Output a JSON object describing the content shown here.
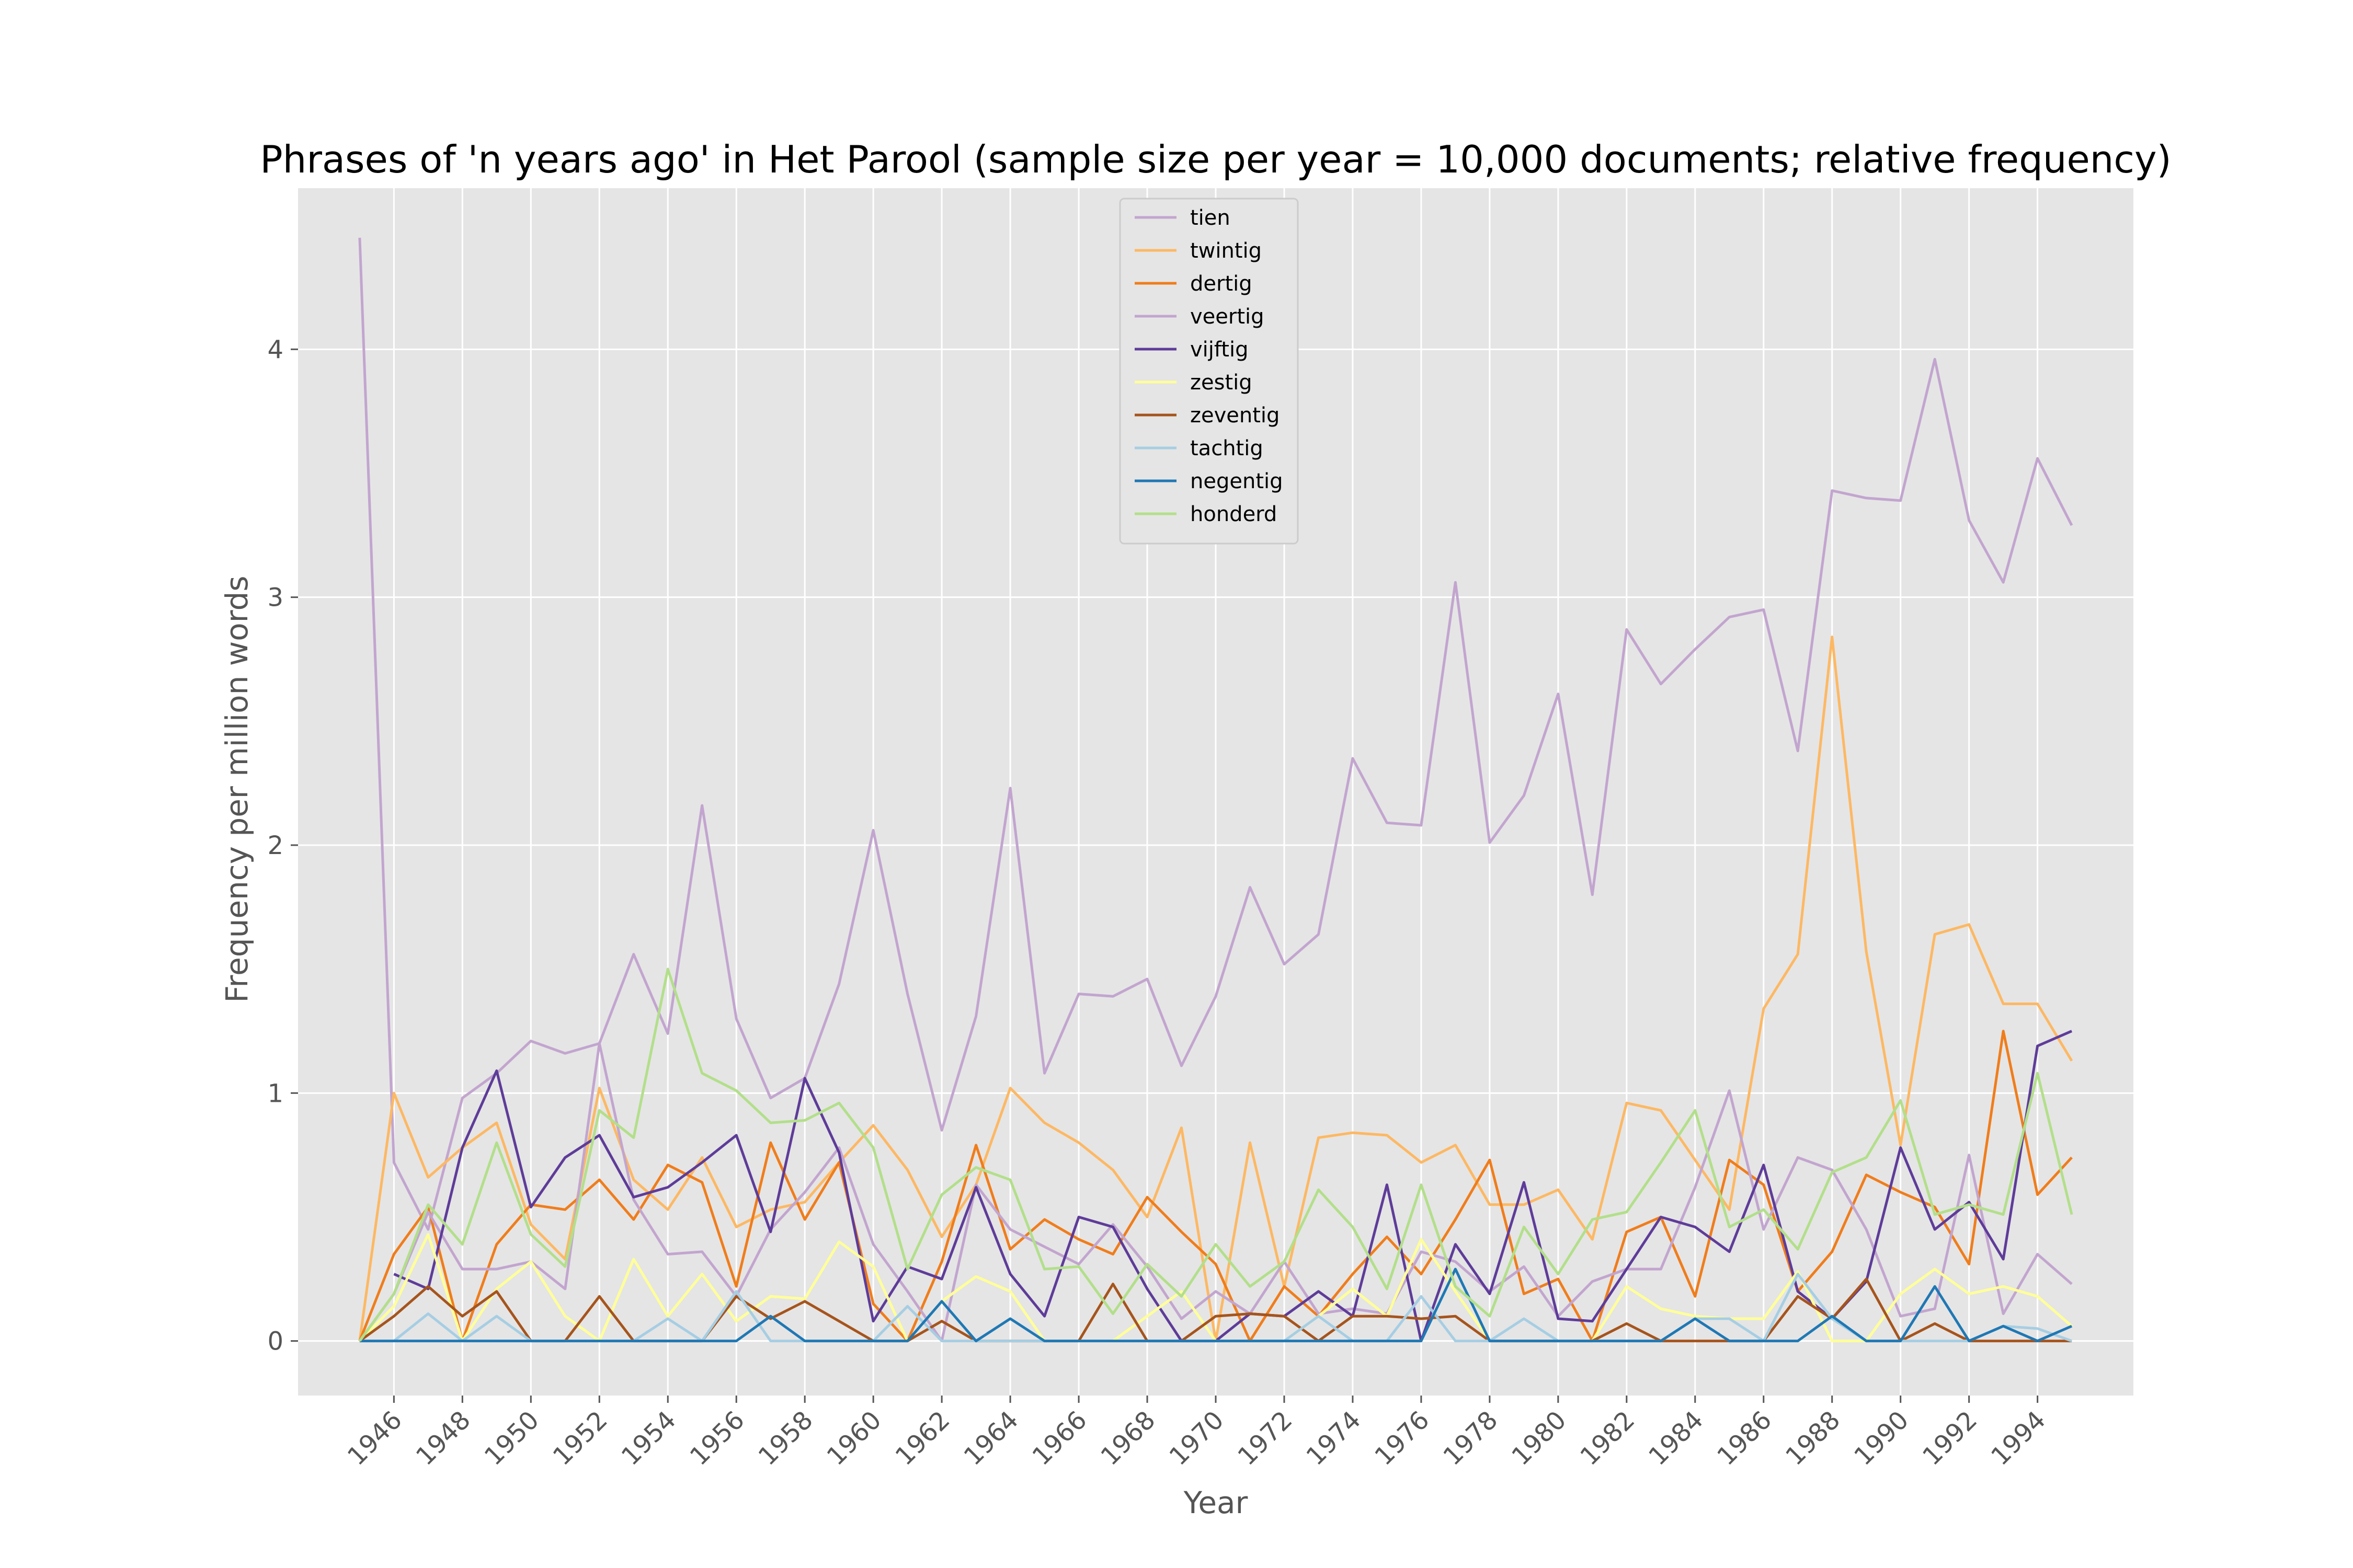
{
  "chart_data": {
    "type": "line",
    "title": "Phrases of 'n years ago' in Het Parool (sample size per year = 10,000 documents; relative frequency)",
    "xlabel": "Year",
    "ylabel": "Frequency per million words",
    "xlim": [
      1943.2,
      1996.8
    ],
    "ylim": [
      -0.22,
      4.65
    ],
    "xticks": [
      1946,
      1948,
      1950,
      1952,
      1954,
      1956,
      1958,
      1960,
      1962,
      1964,
      1966,
      1968,
      1970,
      1972,
      1974,
      1976,
      1978,
      1980,
      1982,
      1984,
      1986,
      1988,
      1990,
      1992,
      1994
    ],
    "yticks": [
      0,
      1,
      2,
      3,
      4
    ],
    "grid": true,
    "legend_position": "top-center",
    "x": [
      1945,
      1946,
      1947,
      1948,
      1949,
      1950,
      1951,
      1952,
      1953,
      1954,
      1955,
      1956,
      1957,
      1958,
      1959,
      1960,
      1961,
      1962,
      1963,
      1964,
      1965,
      1966,
      1967,
      1968,
      1969,
      1970,
      1971,
      1972,
      1973,
      1974,
      1975,
      1976,
      1977,
      1978,
      1979,
      1980,
      1981,
      1982,
      1983,
      1984,
      1985,
      1986,
      1987,
      1988,
      1989,
      1990,
      1991,
      1992,
      1993,
      1994,
      1995
    ],
    "series": [
      {
        "name": "tien",
        "color": "#c2a5cf",
        "values": [
          4.45,
          0.72,
          0.45,
          0.98,
          1.08,
          1.21,
          1.16,
          1.2,
          1.56,
          1.24,
          2.16,
          1.3,
          0.98,
          1.06,
          1.44,
          2.06,
          1.4,
          0.85,
          1.31,
          2.23,
          1.08,
          1.4,
          1.39,
          1.46,
          1.11,
          1.39,
          1.83,
          1.52,
          1.64,
          2.35,
          2.09,
          2.08,
          3.06,
          2.01,
          2.2,
          2.61,
          1.8,
          2.87,
          2.65,
          2.79,
          2.92,
          2.95,
          2.38,
          3.43,
          3.4,
          3.39,
          3.96,
          3.31,
          3.06,
          3.56,
          3.29
        ]
      },
      {
        "name": "twintig",
        "color": "#fdb863",
        "values": [
          0.0,
          1.0,
          0.66,
          0.78,
          0.88,
          0.47,
          0.33,
          1.02,
          0.65,
          0.53,
          0.74,
          0.46,
          0.53,
          0.56,
          0.72,
          0.87,
          0.69,
          0.42,
          0.63,
          1.02,
          0.88,
          0.8,
          0.69,
          0.5,
          0.86,
          0.0,
          0.8,
          0.22,
          0.82,
          0.84,
          0.83,
          0.72,
          0.79,
          0.55,
          0.55,
          0.61,
          0.41,
          0.96,
          0.93,
          0.73,
          0.53,
          1.34,
          1.56,
          2.84,
          1.57,
          0.79,
          1.64,
          1.68,
          1.36,
          1.36,
          1.13
        ]
      },
      {
        "name": "dertig",
        "color": "#f07d1b",
        "values": [
          0.0,
          0.35,
          0.54,
          0.0,
          0.39,
          0.55,
          0.53,
          0.65,
          0.49,
          0.71,
          0.64,
          0.22,
          0.8,
          0.49,
          0.72,
          0.15,
          0.0,
          0.32,
          0.79,
          0.37,
          0.49,
          0.41,
          0.35,
          0.58,
          0.44,
          0.31,
          0.0,
          0.22,
          0.1,
          0.27,
          0.42,
          0.27,
          0.49,
          0.73,
          0.19,
          0.25,
          0.0,
          0.44,
          0.5,
          0.18,
          0.73,
          0.63,
          0.2,
          0.36,
          0.67,
          0.6,
          0.54,
          0.31,
          1.25,
          0.59,
          0.74
        ]
      },
      {
        "name": "veertig",
        "color": "#c2a5cf",
        "values": [
          0.0,
          0.19,
          0.52,
          0.29,
          0.29,
          0.32,
          0.21,
          1.2,
          0.57,
          0.35,
          0.36,
          0.18,
          0.45,
          0.6,
          0.78,
          0.39,
          0.2,
          0.0,
          0.63,
          0.45,
          0.38,
          0.31,
          0.47,
          0.3,
          0.09,
          0.2,
          0.11,
          0.32,
          0.11,
          0.13,
          0.11,
          0.36,
          0.32,
          0.2,
          0.3,
          0.1,
          0.24,
          0.29,
          0.29,
          0.62,
          1.01,
          0.45,
          0.74,
          0.69,
          0.45,
          0.1,
          0.13,
          0.75,
          0.11,
          0.35,
          0.23
        ]
      },
      {
        "name": "vijftig",
        "color": "#5e3c99",
        "values": [
          null,
          0.27,
          0.21,
          0.78,
          1.09,
          0.54,
          0.74,
          0.83,
          0.58,
          0.62,
          0.72,
          0.83,
          0.44,
          1.06,
          0.76,
          0.08,
          0.3,
          0.25,
          0.62,
          0.27,
          0.1,
          0.5,
          0.46,
          0.21,
          0.0,
          0.0,
          0.11,
          0.1,
          0.2,
          0.1,
          0.63,
          0.0,
          0.39,
          0.19,
          0.64,
          0.09,
          0.08,
          0.29,
          0.5,
          0.46,
          0.36,
          0.71,
          0.2,
          0.09,
          0.24,
          0.78,
          0.45,
          0.56,
          0.33,
          1.19,
          1.25
        ]
      },
      {
        "name": "zestig",
        "color": "#ffff99",
        "values": [
          0.0,
          0.14,
          0.43,
          0.0,
          0.21,
          0.32,
          0.1,
          0.0,
          0.33,
          0.1,
          0.27,
          0.08,
          0.18,
          0.17,
          0.4,
          0.3,
          0.0,
          0.16,
          0.26,
          0.2,
          0.0,
          0.0,
          0.0,
          0.1,
          0.2,
          0.0,
          0.0,
          0.0,
          0.1,
          0.21,
          0.1,
          0.41,
          0.2,
          0.0,
          0.0,
          0.0,
          0.0,
          0.22,
          0.13,
          0.1,
          0.09,
          0.09,
          0.28,
          0.0,
          0.0,
          0.19,
          0.29,
          0.19,
          0.22,
          0.18,
          0.06
        ]
      },
      {
        "name": "zeventig",
        "color": "#a6541c",
        "values": [
          0.0,
          0.1,
          0.22,
          0.1,
          0.2,
          0.0,
          0.0,
          0.18,
          0.0,
          0.0,
          0.0,
          0.18,
          0.09,
          0.16,
          0.08,
          0.0,
          0.0,
          0.08,
          0.0,
          0.0,
          0.0,
          0.0,
          0.23,
          0.0,
          0.0,
          0.1,
          0.11,
          0.1,
          0.0,
          0.1,
          0.1,
          0.09,
          0.1,
          0.0,
          0.0,
          0.0,
          0.0,
          0.07,
          0.0,
          0.0,
          0.0,
          0.0,
          0.18,
          0.09,
          0.25,
          0.0,
          0.07,
          0.0,
          0.0,
          0.0,
          0.0
        ]
      },
      {
        "name": "tachtig",
        "color": "#a6cee3",
        "values": [
          0.0,
          0.0,
          0.11,
          0.0,
          0.1,
          0.0,
          0.0,
          0.0,
          0.0,
          0.09,
          0.0,
          0.2,
          0.0,
          0.0,
          0.0,
          0.0,
          0.14,
          0.0,
          0.0,
          0.0,
          0.0,
          0.0,
          0.0,
          0.0,
          0.0,
          0.0,
          0.0,
          0.0,
          0.1,
          0.0,
          0.0,
          0.18,
          0.0,
          0.0,
          0.09,
          0.0,
          0.0,
          0.0,
          0.0,
          0.09,
          0.09,
          0.0,
          0.27,
          0.09,
          0.0,
          0.0,
          0.0,
          0.0,
          0.06,
          0.05,
          0.0
        ]
      },
      {
        "name": "negentig",
        "color": "#1f78b4",
        "values": [
          0.0,
          0.0,
          0.0,
          0.0,
          0.0,
          0.0,
          0.0,
          0.0,
          0.0,
          0.0,
          0.0,
          0.0,
          0.1,
          0.0,
          0.0,
          0.0,
          0.0,
          0.16,
          0.0,
          0.09,
          0.0,
          0.0,
          0.0,
          0.0,
          0.0,
          0.0,
          0.0,
          0.0,
          0.0,
          0.0,
          0.0,
          0.0,
          0.29,
          0.0,
          0.0,
          0.0,
          0.0,
          0.0,
          0.0,
          0.09,
          0.0,
          0.0,
          0.0,
          0.1,
          0.0,
          0.0,
          0.22,
          0.0,
          0.06,
          0.0,
          0.06
        ]
      },
      {
        "name": "honderd",
        "color": "#b2df8a",
        "values": [
          0.0,
          0.19,
          0.55,
          0.39,
          0.8,
          0.43,
          0.3,
          0.93,
          0.82,
          1.5,
          1.08,
          1.01,
          0.88,
          0.89,
          0.96,
          0.78,
          0.29,
          0.59,
          0.7,
          0.65,
          0.29,
          0.3,
          0.11,
          0.31,
          0.18,
          0.39,
          0.22,
          0.32,
          0.61,
          0.46,
          0.21,
          0.63,
          0.22,
          0.1,
          0.46,
          0.27,
          0.49,
          0.52,
          0.72,
          0.93,
          0.46,
          0.53,
          0.37,
          0.68,
          0.74,
          0.97,
          0.51,
          0.55,
          0.51,
          1.08,
          0.51
        ]
      }
    ]
  }
}
